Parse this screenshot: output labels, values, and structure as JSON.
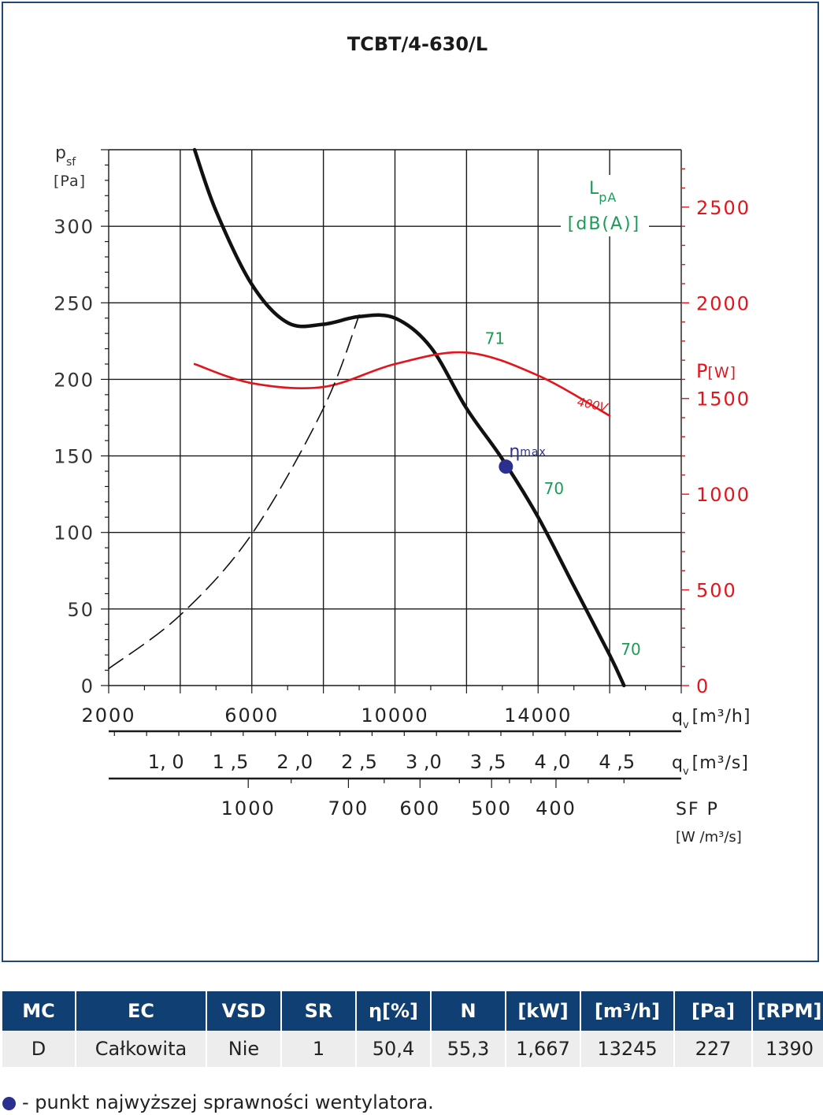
{
  "chart_data": {
    "type": "line",
    "title": "TCBT/4-630/L",
    "xlabel": "q",
    "xlabel_sub": "v",
    "xlabel_unit": "[m³/h]",
    "ylabel": "p",
    "ylabel_sub": "sf",
    "ylabel_unit": "[Pa]",
    "xlim": [
      2000,
      18000
    ],
    "ylim": [
      0,
      350
    ],
    "x_ticks": [
      2000,
      6000,
      10000,
      14000
    ],
    "y_ticks": [
      0,
      50,
      100,
      150,
      200,
      250,
      300
    ],
    "y2_label": "P",
    "y2_unit": "[W]",
    "y2_lim": [
      0,
      2800
    ],
    "y2_ticks": [
      0,
      500,
      1000,
      1500,
      2000,
      2500
    ],
    "y2_tick_labels": [
      "0",
      "500",
      "1000",
      "1500",
      "2000",
      "2500"
    ],
    "sound_label_main": "L",
    "sound_label_sub": "pA",
    "sound_unit": "[dB(A)]",
    "secondary_axes": [
      {
        "label": "q",
        "label_sub": "v",
        "unit": "[m³/s]",
        "ticks": [
          1.0,
          1.5,
          2.0,
          2.5,
          3.0,
          3.5,
          4.0,
          4.5
        ],
        "tick_labels": [
          "1, 0",
          "1 ,5",
          "2 ,0",
          "2 ,5",
          "3 ,0",
          "3 ,5",
          "4 ,0",
          "4 ,5"
        ]
      },
      {
        "label": "SF P",
        "unit": "[W /m³/s]",
        "ticks": [
          1000,
          700,
          600,
          500,
          400
        ],
        "tick_labels": [
          "1000",
          "700",
          "600",
          "500",
          "400"
        ],
        "tick_x_m3h": [
          5900,
          8700,
          10700,
          12700,
          14500
        ]
      }
    ],
    "series": [
      {
        "type": "pressure",
        "color": "#111111",
        "x": [
          4400,
          5000,
          6000,
          7000,
          8000,
          9000,
          10000,
          11000,
          12000,
          13000,
          14000,
          15000,
          16000,
          16400
        ],
        "y": [
          350,
          310,
          262,
          237,
          236,
          241,
          240,
          221,
          181,
          148,
          110,
          65,
          20,
          0
        ]
      },
      {
        "type": "power",
        "name": "400V",
        "color": "#e3141b",
        "x": [
          4400,
          6000,
          8000,
          10000,
          12000,
          14000,
          16000
        ],
        "y": [
          1680,
          1580,
          1560,
          1680,
          1740,
          1620,
          1410
        ]
      },
      {
        "type": "system",
        "color": "#111111",
        "dashed": true,
        "x": [
          2000,
          4000,
          6000,
          8000,
          9000
        ],
        "y": [
          11,
          46,
          99,
          181,
          242
        ]
      }
    ],
    "annotations": [
      {
        "text": "71",
        "x": 12600,
        "y": 223,
        "color": "#1a9c57"
      },
      {
        "text": "70",
        "x": 14250,
        "y": 125,
        "color": "#1a9c57"
      },
      {
        "text": "70",
        "x": 16400,
        "y": 20,
        "color": "#1a9c57"
      },
      {
        "text": "η",
        "sub": "max",
        "x": 13100,
        "y": 143,
        "color": "#2b2f8f",
        "marker": "dot"
      }
    ],
    "grid": true
  },
  "table": {
    "headers": [
      "MC",
      "EC",
      "VSD",
      "SR",
      "η[%]",
      "N",
      "[kW]",
      "[m³/h]",
      "[Pa]",
      "[RPM]"
    ],
    "row": [
      "D",
      "Całkowita",
      "Nie",
      "1",
      "50,4",
      "55,3",
      "1,667",
      "13245",
      "227",
      "1390"
    ]
  },
  "footnote": "- punkt najwyższej sprawności wentylatora.",
  "colors": {
    "accent": "#0f3f73",
    "power": "#e3141b",
    "sound": "#1a9c57",
    "eta": "#2b2f8f"
  }
}
